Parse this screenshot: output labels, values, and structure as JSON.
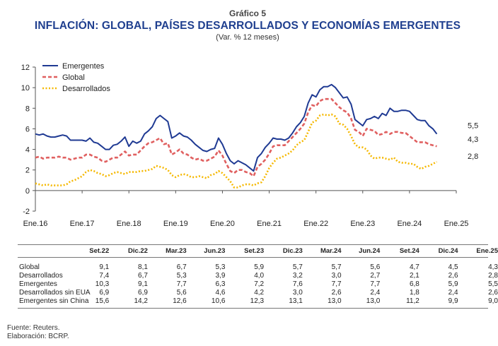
{
  "header": {
    "caption": "Gráfico 5",
    "title": "INFLACIÓN: GLOBAL, PAÍSES DESARROLLADOS Y ECONOMÍAS EMERGENTES",
    "subtitle": "(Var. % 12 meses)"
  },
  "chart_data": {
    "type": "line",
    "ylim": [
      -2,
      12
    ],
    "yticks": [
      -2,
      0,
      2,
      4,
      6,
      8,
      10,
      12
    ],
    "ytick_labels": [
      "-2",
      "0",
      "2",
      "4",
      "6",
      "8",
      "10",
      "12"
    ],
    "xlim": [
      "2016-01",
      "2025-01"
    ],
    "xticks": [
      "2016-01",
      "2017-01",
      "2018-01",
      "2019-01",
      "2020-01",
      "2021-01",
      "2022-01",
      "2023-01",
      "2024-01",
      "2025-01"
    ],
    "xtick_labels": [
      "Ene.16",
      "Ene.17",
      "Ene.18",
      "Ene.19",
      "Ene.20",
      "Ene.21",
      "Ene.22",
      "Ene.23",
      "Ene.24",
      "Ene.25"
    ],
    "legend_position": "top-left",
    "grid": false,
    "series": [
      {
        "name": "Emergentes",
        "color": "#1f3a93",
        "style": "solid",
        "end_label": "5,5",
        "values": [
          5.5,
          5.4,
          5.5,
          5.3,
          5.2,
          5.2,
          5.3,
          5.4,
          5.3,
          4.9,
          4.9,
          4.9,
          4.9,
          4.8,
          5.1,
          4.7,
          4.6,
          4.3,
          4.0,
          4.0,
          4.4,
          4.5,
          4.8,
          5.2,
          4.3,
          4.8,
          4.6,
          4.8,
          5.5,
          5.8,
          6.2,
          7.0,
          7.3,
          7.0,
          6.7,
          5.1,
          5.3,
          5.6,
          5.3,
          5.2,
          4.9,
          4.5,
          4.2,
          3.9,
          3.8,
          4.0,
          4.1,
          5.1,
          4.5,
          3.6,
          2.9,
          2.6,
          2.9,
          2.7,
          2.5,
          2.2,
          1.9,
          3.2,
          3.6,
          4.2,
          4.6,
          5.1,
          5.0,
          5.0,
          4.9,
          5.1,
          5.6,
          6.2,
          6.6,
          7.2,
          8.5,
          9.3,
          9.1,
          9.8,
          10.1,
          10.1,
          10.3,
          10.0,
          9.5,
          9.0,
          9.1,
          8.4,
          6.9,
          6.6,
          6.3,
          6.9,
          7.0,
          7.2,
          7.0,
          7.5,
          7.3,
          8.0,
          7.7,
          7.7,
          7.8,
          7.8,
          7.7,
          7.3,
          6.9,
          6.8,
          6.8,
          6.3,
          6.0,
          5.5
        ]
      },
      {
        "name": "Global",
        "color": "#e06060",
        "style": "dashed",
        "end_label": "4,3",
        "values": [
          3.2,
          3.3,
          3.1,
          3.2,
          3.2,
          3.2,
          3.3,
          3.2,
          3.2,
          3.0,
          3.1,
          3.2,
          3.2,
          3.5,
          3.5,
          3.3,
          3.2,
          2.9,
          2.8,
          3.0,
          3.2,
          3.2,
          3.5,
          3.8,
          3.4,
          3.5,
          3.5,
          3.9,
          4.3,
          4.6,
          4.7,
          4.9,
          5.1,
          4.5,
          4.6,
          3.5,
          3.7,
          4.0,
          3.6,
          3.5,
          3.2,
          3.0,
          3.1,
          2.9,
          2.9,
          3.1,
          3.3,
          3.9,
          3.4,
          2.6,
          1.9,
          1.7,
          2.0,
          2.0,
          1.8,
          1.7,
          1.4,
          2.3,
          2.6,
          3.0,
          3.6,
          4.3,
          4.4,
          4.4,
          4.4,
          4.8,
          5.2,
          5.6,
          6.0,
          6.5,
          7.6,
          8.3,
          8.2,
          8.7,
          8.9,
          8.9,
          8.9,
          8.5,
          8.1,
          7.8,
          7.6,
          7.0,
          5.9,
          5.7,
          5.3,
          6.0,
          5.9,
          5.8,
          5.4,
          5.5,
          5.7,
          5.5,
          5.7,
          5.7,
          5.6,
          5.6,
          5.3,
          5.0,
          4.7,
          4.7,
          4.7,
          4.5,
          4.4,
          4.3
        ]
      },
      {
        "name": "Desarrollados",
        "color": "#f5b800",
        "style": "dotted",
        "end_label": "2,8",
        "values": [
          0.7,
          0.6,
          0.5,
          0.6,
          0.5,
          0.5,
          0.5,
          0.5,
          0.6,
          0.9,
          1.0,
          1.2,
          1.4,
          1.8,
          2.0,
          1.9,
          1.7,
          1.6,
          1.4,
          1.5,
          1.7,
          1.8,
          1.7,
          1.6,
          1.8,
          1.8,
          1.8,
          1.9,
          1.9,
          2.0,
          2.1,
          2.4,
          2.3,
          2.2,
          2.0,
          1.5,
          1.3,
          1.5,
          1.6,
          1.5,
          1.3,
          1.3,
          1.4,
          1.3,
          1.2,
          1.5,
          1.6,
          1.9,
          1.7,
          1.3,
          0.9,
          0.3,
          0.3,
          0.5,
          0.6,
          0.6,
          0.5,
          0.7,
          0.8,
          1.4,
          2.2,
          2.7,
          3.1,
          3.2,
          3.4,
          3.6,
          3.9,
          4.4,
          4.7,
          4.9,
          5.7,
          6.6,
          6.8,
          7.3,
          7.4,
          7.3,
          7.4,
          7.2,
          6.5,
          6.4,
          6.0,
          5.3,
          4.5,
          4.2,
          4.2,
          4.0,
          3.4,
          3.1,
          3.2,
          3.2,
          3.1,
          3.0,
          3.2,
          2.8,
          2.7,
          2.7,
          2.6,
          2.6,
          2.3,
          2.1,
          2.3,
          2.4,
          2.6,
          2.8
        ]
      }
    ]
  },
  "table": {
    "headers": [
      "Set.22",
      "Dic.22",
      "Mar.23",
      "Jun.23",
      "Set.23",
      "Dic.23",
      "Mar.24",
      "Jun.24",
      "Set.24",
      "Dic.24",
      "Ene.25"
    ],
    "rows": [
      {
        "label": "Global",
        "values": [
          "9,1",
          "8,1",
          "6,7",
          "5,3",
          "5,9",
          "5,7",
          "5,7",
          "5,6",
          "4,7",
          "4,5",
          "4,3"
        ]
      },
      {
        "label": "Desarrollados",
        "values": [
          "7,4",
          "6,7",
          "5,3",
          "3,9",
          "4,0",
          "3,2",
          "3,0",
          "2,7",
          "2,1",
          "2,6",
          "2,8"
        ]
      },
      {
        "label": "Emergentes",
        "values": [
          "10,3",
          "9,1",
          "7,7",
          "6,3",
          "7,2",
          "7,6",
          "7,7",
          "7,7",
          "6,8",
          "5,9",
          "5,5"
        ]
      },
      {
        "label": "Desarrollados sin EUA",
        "values": [
          "6,9",
          "6,9",
          "5,6",
          "4,6",
          "4,2",
          "3,0",
          "2,6",
          "2,4",
          "1,8",
          "2,4",
          "2,6"
        ]
      },
      {
        "label": "Emergentes sin China",
        "values": [
          "15,6",
          "14,2",
          "12,6",
          "10,6",
          "12,3",
          "13,1",
          "13,0",
          "13,0",
          "11,2",
          "9,9",
          "9,0"
        ]
      }
    ]
  },
  "footer": {
    "source": "Fuente: Reuters.",
    "elaboration": "Elaboración: BCRP."
  }
}
